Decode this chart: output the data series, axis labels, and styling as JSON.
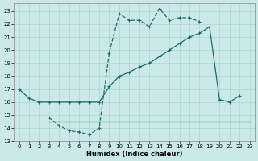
{
  "xlabel": "Humidex (Indice chaleur)",
  "background_color": "#cce9ea",
  "grid_color": "#aad4d6",
  "line_color": "#1a6e6a",
  "xlim": [
    -0.5,
    23.5
  ],
  "ylim": [
    13,
    23.6
  ],
  "yticks": [
    13,
    14,
    15,
    16,
    17,
    18,
    19,
    20,
    21,
    22,
    23
  ],
  "xticks": [
    0,
    1,
    2,
    3,
    4,
    5,
    6,
    7,
    8,
    9,
    10,
    11,
    12,
    13,
    14,
    15,
    16,
    17,
    18,
    19,
    20,
    21,
    22,
    23
  ],
  "s1_x": [
    0,
    1,
    2,
    3,
    4,
    5,
    6,
    7,
    8,
    9,
    10,
    11,
    12,
    13,
    14,
    15,
    16,
    17,
    18,
    19,
    20,
    21,
    22
  ],
  "s1_y": [
    17,
    16.3,
    16,
    16,
    16,
    16,
    16,
    16,
    16,
    17.2,
    18.0,
    18.3,
    18.7,
    19.0,
    19.5,
    20.0,
    20.5,
    21.0,
    21.3,
    21.8,
    16.2,
    16.0,
    16.5
  ],
  "s2_x": [
    3,
    4,
    5,
    6,
    7,
    8,
    9,
    10,
    11,
    12,
    13,
    14,
    15,
    16,
    17,
    18
  ],
  "s2_y": [
    14.8,
    14.2,
    13.8,
    13.7,
    13.5,
    14.0,
    19.8,
    22.8,
    22.3,
    22.3,
    21.8,
    23.2,
    22.3,
    22.5,
    22.5,
    22.2
  ],
  "s3_x": [
    3,
    4,
    5,
    6,
    7,
    8,
    9,
    10,
    11,
    12,
    13,
    14,
    15,
    16,
    17,
    18,
    19,
    20,
    21,
    22,
    23
  ],
  "s3_y": [
    14.5,
    14.5,
    14.5,
    14.5,
    14.5,
    14.5,
    14.5,
    14.5,
    14.5,
    14.5,
    14.5,
    14.5,
    14.5,
    14.5,
    14.5,
    14.5,
    14.5,
    14.5,
    14.5,
    14.5,
    14.5
  ]
}
